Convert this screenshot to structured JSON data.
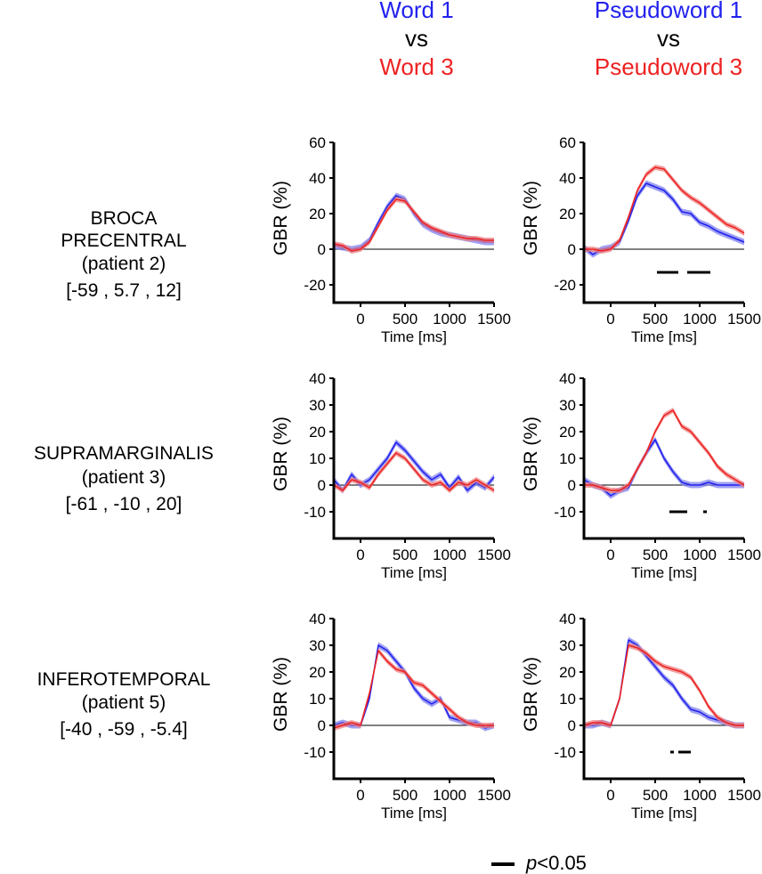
{
  "columns": [
    {
      "title_a": "Word 1",
      "vs": "vs",
      "title_b": "Word 3"
    },
    {
      "title_a": "Pseudoword 1",
      "vs": "vs",
      "title_b": "Pseudoword 3"
    }
  ],
  "rows": [
    {
      "region": "BROCA",
      "region2": "PRECENTRAL",
      "patient": "(patient 2)",
      "coords": "[-59 , 5.7 , 12]"
    },
    {
      "region": "SUPRAMARGINALIS",
      "region2": "",
      "patient": "(patient 3)",
      "coords": "[-61 , -10 , 20]"
    },
    {
      "region": "INFEROTEMPORAL",
      "region2": "",
      "patient": "(patient 5)",
      "coords": "[-40 , -59 , -5.4]"
    }
  ],
  "colors": {
    "series1": "#2222ee",
    "series2": "#ee2222",
    "band1": "#8080ee",
    "band2": "#ee8080"
  },
  "legend": {
    "p_symbol": "p",
    "p_text": "<0.05"
  },
  "chart_data": [
    {
      "type": "line",
      "row": 0,
      "col": 0,
      "xlabel": "Time [ms]",
      "ylabel": "GBR (%)",
      "xlim": [
        -300,
        1500
      ],
      "ylim": [
        -30,
        60
      ],
      "xticks": [
        0,
        500,
        1000,
        1500
      ],
      "yticks": [
        -20,
        0,
        20,
        40,
        60
      ],
      "x": [
        -300,
        -200,
        -100,
        0,
        100,
        200,
        300,
        400,
        500,
        600,
        700,
        800,
        900,
        1000,
        1100,
        1200,
        1300,
        1400,
        1500
      ],
      "series": [
        {
          "name": "Word 1",
          "values": [
            2,
            1,
            0,
            1,
            5,
            15,
            24,
            30,
            28,
            20,
            14,
            11,
            9,
            8,
            7,
            6,
            5,
            4,
            4
          ]
        },
        {
          "name": "Word 3",
          "values": [
            3,
            2,
            -1,
            0,
            4,
            13,
            22,
            28,
            27,
            21,
            15,
            12,
            10,
            8,
            7,
            6,
            6,
            5,
            5
          ]
        }
      ],
      "significance": []
    },
    {
      "type": "line",
      "row": 0,
      "col": 1,
      "xlabel": "Time [ms]",
      "ylabel": "GBR (%)",
      "xlim": [
        -300,
        1500
      ],
      "ylim": [
        -30,
        60
      ],
      "xticks": [
        0,
        500,
        1000,
        1500
      ],
      "yticks": [
        -20,
        0,
        20,
        40,
        60
      ],
      "x": [
        -300,
        -200,
        -100,
        0,
        100,
        200,
        300,
        400,
        500,
        600,
        700,
        800,
        900,
        1000,
        1100,
        1200,
        1300,
        1400,
        1500
      ],
      "series": [
        {
          "name": "Pseudoword 1",
          "values": [
            1,
            -3,
            0,
            1,
            4,
            16,
            30,
            37,
            35,
            33,
            28,
            21,
            20,
            15,
            13,
            10,
            8,
            6,
            4
          ]
        },
        {
          "name": "Pseudoword 3",
          "values": [
            0,
            0,
            -1,
            0,
            5,
            18,
            33,
            42,
            46,
            45,
            39,
            33,
            29,
            26,
            22,
            18,
            14,
            12,
            9
          ]
        }
      ],
      "significance": [
        [
          520,
          760
        ],
        [
          860,
          1120
        ]
      ]
    },
    {
      "type": "line",
      "row": 1,
      "col": 0,
      "xlabel": "Time [ms]",
      "ylabel": "GBR (%)",
      "xlim": [
        -300,
        1500
      ],
      "ylim": [
        -20,
        40
      ],
      "xticks": [
        0,
        500,
        1000,
        1500
      ],
      "yticks": [
        -10,
        0,
        10,
        20,
        30,
        40
      ],
      "x": [
        -300,
        -200,
        -100,
        0,
        100,
        200,
        300,
        400,
        500,
        600,
        700,
        800,
        900,
        1000,
        1100,
        1200,
        1300,
        1400,
        1500
      ],
      "series": [
        {
          "name": "Word 1",
          "values": [
            2,
            -2,
            4,
            0,
            2,
            6,
            10,
            16,
            13,
            9,
            5,
            2,
            4,
            -1,
            3,
            -2,
            1,
            -1,
            3
          ]
        },
        {
          "name": "Word 3",
          "values": [
            0,
            -2,
            2,
            1,
            -1,
            4,
            8,
            12,
            10,
            6,
            2,
            0,
            1,
            -2,
            1,
            0,
            2,
            0,
            -2
          ]
        }
      ],
      "significance": []
    },
    {
      "type": "line",
      "row": 1,
      "col": 1,
      "xlabel": "Time [ms]",
      "ylabel": "GBR (%)",
      "xlim": [
        -300,
        1500
      ],
      "ylim": [
        -20,
        40
      ],
      "xticks": [
        0,
        500,
        1000,
        1500
      ],
      "yticks": [
        -10,
        0,
        10,
        20,
        30,
        40
      ],
      "x": [
        -300,
        -200,
        -100,
        0,
        100,
        200,
        300,
        400,
        500,
        600,
        700,
        800,
        900,
        1000,
        1100,
        1200,
        1300,
        1400,
        1500
      ],
      "series": [
        {
          "name": "Pseudoword 1",
          "values": [
            2,
            0,
            -1,
            -4,
            -2,
            -1,
            6,
            12,
            17,
            10,
            5,
            1,
            0,
            0,
            1,
            0,
            0,
            0,
            0
          ]
        },
        {
          "name": "Pseudoword 3",
          "values": [
            0,
            0,
            -1,
            -2,
            -2,
            0,
            6,
            12,
            20,
            26,
            28,
            22,
            20,
            16,
            12,
            7,
            4,
            2,
            0
          ]
        }
      ],
      "significance": [
        [
          660,
          860
        ],
        [
          1040,
          1080
        ]
      ]
    },
    {
      "type": "line",
      "row": 2,
      "col": 0,
      "xlabel": "Time [ms]",
      "ylabel": "GBR (%)",
      "xlim": [
        -300,
        1500
      ],
      "ylim": [
        -20,
        40
      ],
      "xticks": [
        0,
        500,
        1000,
        1500
      ],
      "yticks": [
        -10,
        0,
        10,
        20,
        30,
        40
      ],
      "x": [
        -300,
        -200,
        -100,
        0,
        100,
        200,
        300,
        400,
        500,
        600,
        700,
        800,
        900,
        1000,
        1100,
        1200,
        1300,
        1400,
        1500
      ],
      "series": [
        {
          "name": "Word 1",
          "values": [
            0,
            1,
            0,
            0,
            10,
            30,
            28,
            24,
            20,
            14,
            10,
            8,
            10,
            3,
            2,
            1,
            1,
            -1,
            0
          ]
        },
        {
          "name": "Word 3",
          "values": [
            -1,
            0,
            1,
            0,
            12,
            28,
            24,
            21,
            20,
            16,
            15,
            12,
            9,
            6,
            3,
            1,
            0,
            0,
            0
          ]
        }
      ],
      "significance": []
    },
    {
      "type": "line",
      "row": 2,
      "col": 1,
      "xlabel": "Time [ms]",
      "ylabel": "GBR (%)",
      "xlim": [
        -300,
        1500
      ],
      "ylim": [
        -20,
        40
      ],
      "xticks": [
        0,
        500,
        1000,
        1500
      ],
      "yticks": [
        -10,
        0,
        10,
        20,
        30,
        40
      ],
      "x": [
        -300,
        -200,
        -100,
        0,
        100,
        200,
        300,
        400,
        500,
        600,
        700,
        800,
        900,
        1000,
        1100,
        1200,
        1300,
        1400,
        1500
      ],
      "series": [
        {
          "name": "Pseudoword 1",
          "values": [
            0,
            0,
            1,
            0,
            10,
            32,
            30,
            26,
            22,
            18,
            15,
            10,
            6,
            5,
            3,
            2,
            1,
            0,
            0
          ]
        },
        {
          "name": "Pseudoword 3",
          "values": [
            0,
            1,
            1,
            0,
            10,
            30,
            29,
            27,
            24,
            22,
            21,
            20,
            18,
            13,
            7,
            3,
            1,
            0,
            0
          ]
        }
      ],
      "significance": [
        [
          670,
          710
        ],
        [
          760,
          900
        ]
      ]
    }
  ]
}
